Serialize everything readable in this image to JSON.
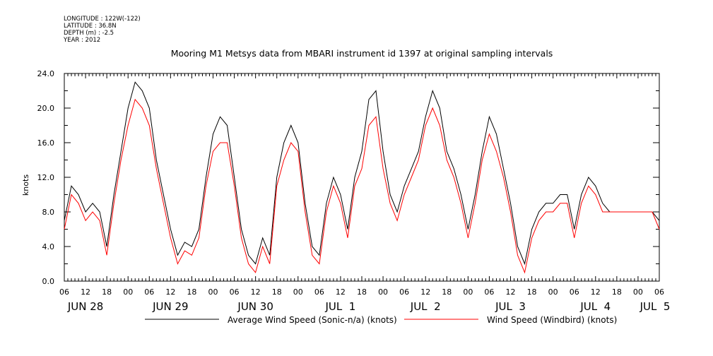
{
  "meta": {
    "longitude": "LONGITUDE : 122W(-122)",
    "latitude": "LATITUDE : 36.8N",
    "depth": "DEPTH (m) : -2.5",
    "year": "YEAR : 2012"
  },
  "chart_data": {
    "type": "line",
    "title": "Mooring M1 Metsys data from MBARI instrument id 1397 at original sampling intervals",
    "ylabel": "knots",
    "ylim": [
      0,
      24
    ],
    "grid": false,
    "legend_position": "bottom",
    "y_ticks": [
      "0.0",
      "4.0",
      "8.0",
      "12.0",
      "16.0",
      "20.0",
      "24.0"
    ],
    "x_range_hours": [
      "Jun 28 06:00",
      "Jul 5 06:00"
    ],
    "x_hour_labels": [
      "06",
      "12",
      "18",
      "00",
      "06",
      "12",
      "18",
      "00",
      "06",
      "12",
      "18",
      "00",
      "06",
      "12",
      "18",
      "00",
      "06",
      "12",
      "18",
      "00",
      "06",
      "12",
      "18",
      "00",
      "06",
      "12",
      "18",
      "00",
      "06"
    ],
    "x_day_labels": [
      "JUN 28",
      "JUN 29",
      "JUN 30",
      "JUL  1",
      "JUL  2",
      "JUL  3",
      "JUL  4",
      "JUL  5"
    ],
    "series": [
      {
        "name": "Average Wind Speed (Sonic-n/a) (knots)",
        "color": "#000000",
        "x_hours_since_jun28_06": [
          0,
          2,
          4,
          6,
          8,
          10,
          12,
          14,
          16,
          18,
          20,
          22,
          24,
          26,
          28,
          30,
          32,
          34,
          36,
          38,
          40,
          42,
          44,
          46,
          48,
          50,
          52,
          54,
          56,
          58,
          60,
          62,
          64,
          66,
          68,
          70,
          72,
          74,
          76,
          78,
          80,
          82,
          84,
          86,
          88,
          90,
          92,
          94,
          96,
          98,
          100,
          102,
          104,
          106,
          108,
          110,
          112,
          114,
          116,
          118,
          120,
          122,
          124,
          126,
          128,
          130,
          132,
          134,
          136,
          138,
          140,
          142,
          144,
          146,
          148,
          150,
          152,
          154,
          156,
          158,
          160,
          162,
          164,
          166,
          168
        ],
        "values": [
          7,
          11,
          10,
          8,
          9,
          8,
          4,
          10,
          15,
          20,
          23,
          22,
          20,
          14,
          10,
          6,
          3,
          4.5,
          4,
          6,
          12,
          17,
          19,
          18,
          12,
          6,
          3,
          2,
          5,
          3,
          12,
          16,
          18,
          16,
          9,
          4,
          3,
          9,
          12,
          10,
          6,
          12,
          15,
          21,
          22,
          15,
          10,
          8,
          11,
          13,
          15,
          19,
          22,
          20,
          15,
          13,
          10,
          6,
          10,
          15,
          19,
          17,
          13,
          9,
          4,
          2,
          6,
          8,
          9,
          9,
          10,
          10,
          6,
          10,
          12,
          11,
          9,
          8,
          8,
          8,
          8,
          8,
          8,
          8,
          7
        ],
        "values_note": ""
      },
      {
        "name": "Wind Speed (Windbird) (knots)",
        "color": "#ff0000",
        "x_hours_since_jun28_06": [
          0,
          2,
          4,
          6,
          8,
          10,
          12,
          14,
          16,
          18,
          20,
          22,
          24,
          26,
          28,
          30,
          32,
          34,
          36,
          38,
          40,
          42,
          44,
          46,
          48,
          50,
          52,
          54,
          56,
          58,
          60,
          62,
          64,
          66,
          68,
          70,
          72,
          74,
          76,
          78,
          80,
          82,
          84,
          86,
          88,
          90,
          92,
          94,
          96,
          98,
          100,
          102,
          104,
          106,
          108,
          110,
          112,
          114,
          116,
          118,
          120,
          122,
          124,
          126,
          128,
          130,
          132,
          134,
          136,
          138,
          140,
          142,
          144,
          146,
          148,
          150,
          152,
          154,
          156,
          158,
          160,
          162,
          164,
          166,
          168
        ],
        "values": [
          6,
          10,
          9,
          7,
          8,
          7,
          3,
          9,
          14,
          18,
          21,
          20,
          18,
          13,
          9,
          5,
          2,
          3.5,
          3,
          5,
          11,
          15,
          16,
          16,
          11,
          5,
          2,
          1,
          4,
          2,
          11,
          14,
          16,
          15,
          8,
          3,
          2,
          8,
          11,
          9,
          5,
          11,
          13,
          18,
          19,
          13,
          9,
          7,
          10,
          12,
          14,
          18,
          20,
          18,
          14,
          12,
          9,
          5,
          9,
          14,
          17,
          15,
          12,
          8,
          3,
          1,
          5,
          7,
          8,
          8,
          9,
          9,
          5,
          9,
          11,
          10,
          8,
          8,
          8,
          8,
          8,
          8,
          8,
          8,
          6
        ]
      }
    ]
  }
}
